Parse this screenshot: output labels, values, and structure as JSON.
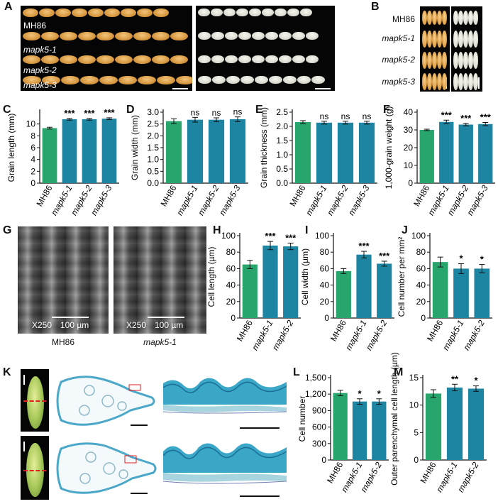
{
  "panels": {
    "A": {
      "letter": "A",
      "labels": [
        "MH86",
        "mapk5-1",
        "mapk5-2",
        "mapk5-3"
      ]
    },
    "B": {
      "letter": "B",
      "labels": [
        "MH86",
        "mapk5-1",
        "mapk5-2",
        "mapk5-3"
      ]
    },
    "C": {
      "letter": "C"
    },
    "D": {
      "letter": "D"
    },
    "E": {
      "letter": "E"
    },
    "F": {
      "letter": "F"
    },
    "G": {
      "letter": "G",
      "left": {
        "mag": "X250",
        "scale": "100 µm",
        "caption": "MH86"
      },
      "right": {
        "mag": "X250",
        "scale": "100 µm",
        "caption": "mapk5-1"
      }
    },
    "H": {
      "letter": "H"
    },
    "I": {
      "letter": "I"
    },
    "J": {
      "letter": "J"
    },
    "K": {
      "letter": "K"
    },
    "L": {
      "letter": "L"
    },
    "M": {
      "letter": "M"
    }
  },
  "colors": {
    "green": "#27a56d",
    "blue": "#1d85a1",
    "axis": "#111111"
  },
  "chart_data": [
    {
      "id": "C",
      "type": "bar",
      "ylabel": "Grain length (mm)",
      "ylim": [
        0,
        12
      ],
      "yticks": [
        "0",
        "2",
        "4",
        "6",
        "8",
        "10"
      ],
      "ytick_values": [
        0,
        2,
        4,
        6,
        8,
        10
      ],
      "categories": [
        "MH86",
        "mapk5-1",
        "mapk5-2",
        "mapk5-3"
      ],
      "values": [
        9.3,
        10.8,
        10.8,
        10.9
      ],
      "errors": [
        0.15,
        0.15,
        0.15,
        0.15
      ],
      "sig": [
        "",
        "***",
        "***",
        "***"
      ]
    },
    {
      "id": "D",
      "type": "bar",
      "ylabel": "Grain width (mm)",
      "ylim": [
        0,
        3.0
      ],
      "yticks": [
        "0.0",
        "0.5",
        "1.0",
        "1.5",
        "2.0",
        "2.5",
        "3.0"
      ],
      "ytick_values": [
        0,
        0.5,
        1.0,
        1.5,
        2.0,
        2.5,
        3.0
      ],
      "categories": [
        "MH86",
        "mapk5-1",
        "mapk5-2",
        "mapk5-3"
      ],
      "values": [
        2.62,
        2.68,
        2.68,
        2.7
      ],
      "errors": [
        0.1,
        0.1,
        0.08,
        0.1
      ],
      "sig": [
        "",
        "ns",
        "ns",
        "ns"
      ]
    },
    {
      "id": "E",
      "type": "bar",
      "ylabel": "Grain thickness (mm)",
      "ylim": [
        0,
        2.5
      ],
      "yticks": [
        "0.0",
        "0.5",
        "1.0",
        "1.5",
        "2.0",
        "2.5"
      ],
      "ytick_values": [
        0,
        0.5,
        1.0,
        1.5,
        2.0,
        2.5
      ],
      "categories": [
        "MH86",
        "mapk5-1",
        "mapk5-2",
        "mapk5-3"
      ],
      "values": [
        2.15,
        2.13,
        2.13,
        2.13
      ],
      "errors": [
        0.05,
        0.05,
        0.05,
        0.05
      ],
      "sig": [
        "",
        "ns",
        "ns",
        "ns"
      ]
    },
    {
      "id": "F",
      "type": "bar",
      "ylabel": "1,000-grain weight (g)",
      "ylim": [
        0,
        40
      ],
      "yticks": [
        "0",
        "10",
        "20",
        "30",
        "40"
      ],
      "ytick_values": [
        0,
        10,
        20,
        30,
        40
      ],
      "categories": [
        "MH86",
        "mapk5-1",
        "mapk5-2",
        "mapk5-3"
      ],
      "values": [
        30,
        34.5,
        33,
        33.3
      ],
      "errors": [
        0.4,
        1.0,
        0.7,
        0.9
      ],
      "sig": [
        "",
        "***",
        "***",
        "***"
      ]
    },
    {
      "id": "H",
      "type": "bar",
      "ylabel": "Cell length (µm)",
      "ylim": [
        0,
        100
      ],
      "yticks": [
        "0",
        "20",
        "40",
        "60",
        "80",
        "100"
      ],
      "ytick_values": [
        0,
        20,
        40,
        60,
        80,
        100
      ],
      "categories": [
        "MH86",
        "mapk5-1",
        "mapk5-2"
      ],
      "values": [
        65,
        88,
        87
      ],
      "errors": [
        5,
        5,
        4
      ],
      "sig": [
        "",
        "***",
        "***"
      ]
    },
    {
      "id": "I",
      "type": "bar",
      "ylabel": "Cell width (µm)",
      "ylim": [
        0,
        100
      ],
      "yticks": [
        "0",
        "20",
        "40",
        "60",
        "80",
        "100"
      ],
      "ytick_values": [
        0,
        20,
        40,
        60,
        80,
        100
      ],
      "categories": [
        "MH86",
        "mapk5-1",
        "mapk5-2"
      ],
      "values": [
        57,
        77,
        66
      ],
      "errors": [
        3,
        4,
        3
      ],
      "sig": [
        "",
        "***",
        "***"
      ]
    },
    {
      "id": "J",
      "type": "bar",
      "ylabel": "Cell number per mm²",
      "ylim": [
        0,
        100
      ],
      "yticks": [
        "0",
        "20",
        "40",
        "60",
        "80",
        "100"
      ],
      "ytick_values": [
        0,
        20,
        40,
        60,
        80,
        100
      ],
      "categories": [
        "MH86",
        "mapk5-1",
        "mapk5-2"
      ],
      "values": [
        68,
        60,
        60
      ],
      "errors": [
        6,
        6,
        5
      ],
      "sig": [
        "",
        "*",
        "*"
      ]
    },
    {
      "id": "L",
      "type": "bar",
      "ylabel": "Cell number",
      "ylim": [
        0,
        1500
      ],
      "yticks": [
        "0",
        "300",
        "600",
        "900",
        "1,200",
        "1,500"
      ],
      "ytick_values": [
        0,
        300,
        600,
        900,
        1200,
        1500
      ],
      "categories": [
        "MH86",
        "mapk5-1",
        "mapk5-2"
      ],
      "values": [
        1220,
        1065,
        1065
      ],
      "errors": [
        50,
        50,
        50
      ],
      "sig": [
        "",
        "*",
        "*"
      ]
    },
    {
      "id": "M",
      "type": "bar",
      "ylabel": "Outer parenchymal cell length (µm)",
      "ylim": [
        0,
        15
      ],
      "yticks": [
        "0",
        "5",
        "10",
        "15"
      ],
      "ytick_values": [
        0,
        5,
        10,
        15
      ],
      "categories": [
        "MH86",
        "mapk5-1",
        "mapk5-2"
      ],
      "values": [
        12.1,
        13.2,
        13.0
      ],
      "errors": [
        0.7,
        0.6,
        0.5
      ],
      "sig": [
        "",
        "**",
        "*"
      ]
    }
  ]
}
